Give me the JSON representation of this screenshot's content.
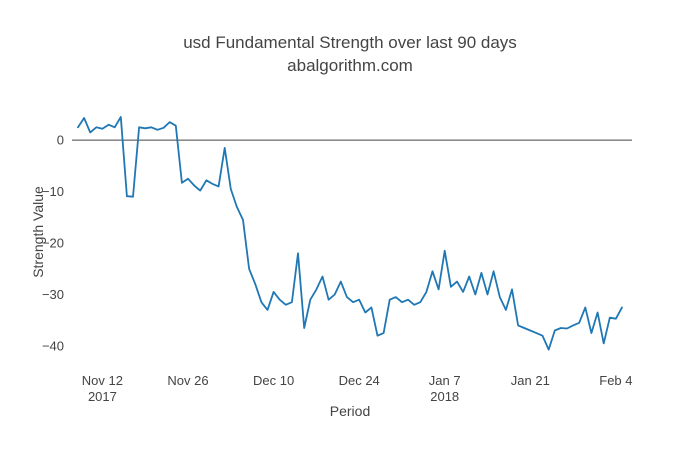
{
  "title": {
    "line1": "usd Fundamental Strength over last 90 days",
    "line2": "abalgorithm.com"
  },
  "axes": {
    "x_label": "Period",
    "y_label": "Strength Value"
  },
  "colors": {
    "line": "#1f77b4",
    "text": "#444444",
    "zero_line": "#444444",
    "background": "#ffffff"
  },
  "chart_data": {
    "type": "line",
    "title": "usd Fundamental Strength over last 90 days",
    "subtitle": "abalgorithm.com",
    "xlabel": "Period",
    "ylabel": "Strength Value",
    "ylim": [
      -43.7,
      7.8
    ],
    "grid": false,
    "legend": false,
    "zero_line": true,
    "line_color": "#1f77b4",
    "y_ticks": [
      {
        "value": 0,
        "label": "0"
      },
      {
        "value": -10,
        "label": "−10"
      },
      {
        "value": -20,
        "label": "−20"
      },
      {
        "value": -30,
        "label": "−30"
      },
      {
        "value": -40,
        "label": "−40"
      }
    ],
    "x_ticks": [
      {
        "index": 4,
        "label": "Nov 12",
        "sublabel": "2017"
      },
      {
        "index": 18,
        "label": "Nov 26",
        "sublabel": ""
      },
      {
        "index": 32,
        "label": "Dec 10",
        "sublabel": ""
      },
      {
        "index": 46,
        "label": "Dec 24",
        "sublabel": ""
      },
      {
        "index": 60,
        "label": "Jan 7",
        "sublabel": "2018"
      },
      {
        "index": 74,
        "label": "Jan 21",
        "sublabel": ""
      },
      {
        "index": 88,
        "label": "Feb 4",
        "sublabel": ""
      }
    ],
    "dates": [
      "2017-11-08",
      "2017-11-09",
      "2017-11-10",
      "2017-11-11",
      "2017-11-12",
      "2017-11-13",
      "2017-11-14",
      "2017-11-15",
      "2017-11-16",
      "2017-11-17",
      "2017-11-18",
      "2017-11-19",
      "2017-11-20",
      "2017-11-21",
      "2017-11-22",
      "2017-11-23",
      "2017-11-24",
      "2017-11-25",
      "2017-11-26",
      "2017-11-27",
      "2017-11-28",
      "2017-11-29",
      "2017-11-30",
      "2017-12-01",
      "2017-12-02",
      "2017-12-03",
      "2017-12-04",
      "2017-12-05",
      "2017-12-06",
      "2017-12-07",
      "2017-12-08",
      "2017-12-09",
      "2017-12-10",
      "2017-12-11",
      "2017-12-12",
      "2017-12-13",
      "2017-12-14",
      "2017-12-15",
      "2017-12-16",
      "2017-12-17",
      "2017-12-18",
      "2017-12-19",
      "2017-12-20",
      "2017-12-21",
      "2017-12-22",
      "2017-12-23",
      "2017-12-24",
      "2017-12-25",
      "2017-12-26",
      "2017-12-27",
      "2017-12-28",
      "2017-12-29",
      "2017-12-30",
      "2017-12-31",
      "2018-01-01",
      "2018-01-02",
      "2018-01-03",
      "2018-01-04",
      "2018-01-05",
      "2018-01-06",
      "2018-01-07",
      "2018-01-08",
      "2018-01-09",
      "2018-01-10",
      "2018-01-11",
      "2018-01-12",
      "2018-01-13",
      "2018-01-14",
      "2018-01-15",
      "2018-01-16",
      "2018-01-17",
      "2018-01-18",
      "2018-01-19",
      "2018-01-20",
      "2018-01-21",
      "2018-01-22",
      "2018-01-23",
      "2018-01-24",
      "2018-01-25",
      "2018-01-26",
      "2018-01-27",
      "2018-01-28",
      "2018-01-29",
      "2018-01-30",
      "2018-01-31",
      "2018-02-01",
      "2018-02-02",
      "2018-02-03",
      "2018-02-04",
      "2018-02-05"
    ],
    "values": [
      2.5,
      4.3,
      1.5,
      2.5,
      2.2,
      3.0,
      2.5,
      4.5,
      -10.9,
      -11.0,
      2.5,
      2.3,
      2.5,
      2.0,
      2.4,
      3.5,
      2.8,
      -8.3,
      -7.5,
      -8.8,
      -9.8,
      -7.8,
      -8.5,
      -9.0,
      -1.5,
      -9.5,
      -13.0,
      -15.5,
      -25.0,
      -28.0,
      -31.5,
      -33.0,
      -29.5,
      -31.0,
      -32.0,
      -31.5,
      -22.0,
      -36.5,
      -31.0,
      -29.0,
      -26.5,
      -31.0,
      -30.0,
      -27.5,
      -30.5,
      -31.5,
      -31.0,
      -33.5,
      -32.5,
      -38.0,
      -37.5,
      -31.0,
      -30.5,
      -31.5,
      -31.0,
      -32.0,
      -31.5,
      -29.5,
      -25.5,
      -29.0,
      -21.5,
      -28.5,
      -27.5,
      -29.5,
      -26.5,
      -30.0,
      -25.8,
      -30.0,
      -25.5,
      -30.5,
      -33.0,
      -29.0,
      -36.0,
      -36.5,
      -37.0,
      -37.5,
      -38.0,
      -40.7,
      -37.0,
      -36.5,
      -36.6,
      -36.0,
      -35.5,
      -32.5,
      -37.5,
      -33.5,
      -39.5,
      -34.5,
      -34.7,
      -32.5
    ]
  }
}
